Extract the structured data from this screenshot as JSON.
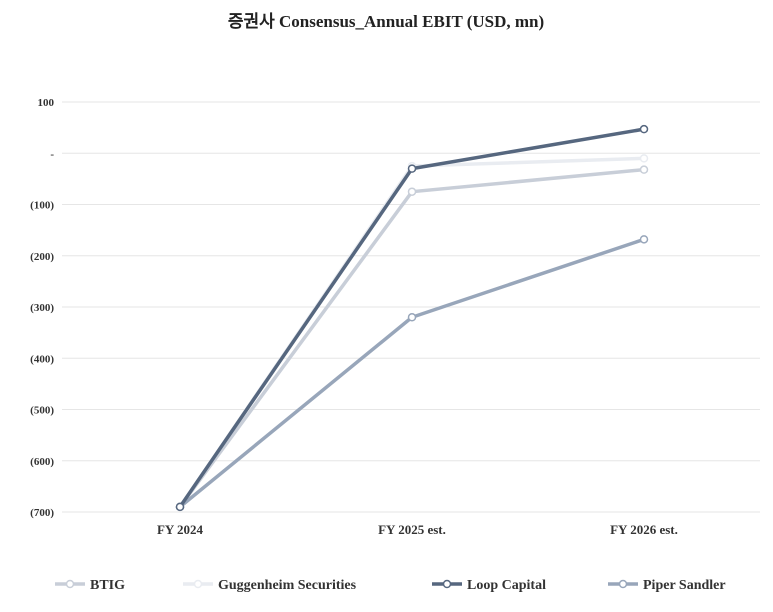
{
  "chart_data": {
    "type": "line",
    "title": "증권사 Consensus_Annual EBIT (USD, mn)",
    "xlabel": "",
    "ylabel": "",
    "categories": [
      "FY 2024",
      "FY 2025 est.",
      "FY 2026 est."
    ],
    "ylim": [
      -700,
      100
    ],
    "yticks": [
      100,
      0,
      -100,
      -200,
      -300,
      -400,
      -500,
      -600,
      -700
    ],
    "ytick_labels": [
      "100",
      "-",
      "(100)",
      "(200)",
      "(300)",
      "(400)",
      "(500)",
      "(600)",
      "(700)"
    ],
    "grid": true,
    "legend_position": "bottom",
    "series": [
      {
        "name": "BTIG",
        "values": [
          -690,
          -75,
          -32
        ],
        "color": "#c8ced8"
      },
      {
        "name": "Guggenheim Securities",
        "values": [
          -690,
          -25,
          -10
        ],
        "color": "#e9ecf1"
      },
      {
        "name": "Loop Capital",
        "values": [
          -690,
          -30,
          47
        ],
        "color": "#56677f"
      },
      {
        "name": "Piper Sandler",
        "values": [
          -690,
          -320,
          -168
        ],
        "color": "#98a6ba"
      }
    ]
  }
}
